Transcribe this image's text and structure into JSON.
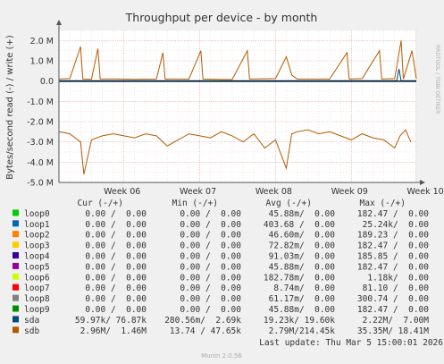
{
  "title": "Throughput per device - by month",
  "watermark": "RRDTOOL / TOBI OETIKER",
  "footer": "Munin 2.0.56",
  "last_update": "Last update: Thu Mar  5 15:00:01 2026",
  "legend": {
    "headers": [
      "Cur (-/+)",
      "Min (-/+)",
      "Avg (-/+)",
      "Max (-/+)"
    ],
    "rows": [
      {
        "name": "loop0",
        "color": "#00cc00",
        "cur": "0.00 /  0.00",
        "min": "0.00 /  0.00",
        "avg": "45.88m/  0.00",
        "max": "182.47 /  0.00"
      },
      {
        "name": "loop1",
        "color": "#0066b3",
        "cur": "0.00 /  0.00",
        "min": "0.00 /  0.00",
        "avg": "403.68 /  0.00",
        "max": "25.24k/  0.00"
      },
      {
        "name": "loop2",
        "color": "#ff8000",
        "cur": "0.00 /  0.00",
        "min": "0.00 /  0.00",
        "avg": "46.60m/  0.00",
        "max": "189.23 /  0.00"
      },
      {
        "name": "loop3",
        "color": "#ffcc00",
        "cur": "0.00 /  0.00",
        "min": "0.00 /  0.00",
        "avg": "72.82m/  0.00",
        "max": "182.47 /  0.00"
      },
      {
        "name": "loop4",
        "color": "#330099",
        "cur": "0.00 /  0.00",
        "min": "0.00 /  0.00",
        "avg": "91.03m/  0.00",
        "max": "185.85 /  0.00"
      },
      {
        "name": "loop5",
        "color": "#990099",
        "cur": "0.00 /  0.00",
        "min": "0.00 /  0.00",
        "avg": "45.88m/  0.00",
        "max": "182.47 /  0.00"
      },
      {
        "name": "loop6",
        "color": "#ccff00",
        "cur": "0.00 /  0.00",
        "min": "0.00 /  0.00",
        "avg": "182.78m/  0.00",
        "max": "1.18k/  0.00"
      },
      {
        "name": "loop7",
        "color": "#ff0000",
        "cur": "0.00 /  0.00",
        "min": "0.00 /  0.00",
        "avg": "8.74m/  0.00",
        "max": "81.10 /  0.00"
      },
      {
        "name": "loop8",
        "color": "#808080",
        "cur": "0.00 /  0.00",
        "min": "0.00 /  0.00",
        "avg": "61.17m/  0.00",
        "max": "300.74 /  0.00"
      },
      {
        "name": "loop9",
        "color": "#008f00",
        "cur": "0.00 /  0.00",
        "min": "0.00 /  0.00",
        "avg": "45.88m/  0.00",
        "max": "182.47 /  0.00"
      },
      {
        "name": "sda",
        "color": "#00487d",
        "cur": "59.97k/ 76.87k",
        "min": "280.56m/  2.69k",
        "avg": "19.23k/ 19.60k",
        "max": "2.22M/  7.00M"
      },
      {
        "name": "sdb",
        "color": "#b35a00",
        "cur": "2.96M/  1.46M",
        "min": "13.74 / 47.65k",
        "avg": "2.79M/214.45k",
        "max": "35.35M/ 18.41M"
      }
    ]
  },
  "chart_data": {
    "type": "line",
    "title": "Throughput per device - by month",
    "ylabel": "Bytes/second read (-) / write (+)",
    "ylim": [
      -5000000,
      2500000
    ],
    "yticks": [
      2000000,
      1000000,
      0,
      -1000000,
      -2000000,
      -3000000,
      -4000000,
      -5000000
    ],
    "ytick_labels": [
      "2.0 M",
      "1.0 M",
      "0.0",
      "-1.0 M",
      "-2.0 M",
      "-3.0 M",
      "-4.0 M",
      "-5.0 M"
    ],
    "x_range_days": [
      0,
      33
    ],
    "xticks": [
      {
        "label": "Week 06",
        "day": 6.0
      },
      {
        "label": "Week 07",
        "day": 13.0
      },
      {
        "label": "Week 08",
        "day": 20.0
      },
      {
        "label": "Week 09",
        "day": 27.0
      },
      {
        "label": "Week 10",
        "day": 34.0
      }
    ],
    "grid": true,
    "series": [
      {
        "name": "sdb",
        "color": "#b35a00",
        "read": [
          [
            0,
            -2500000
          ],
          [
            1,
            -2600000
          ],
          [
            2,
            -3000000
          ],
          [
            2.3,
            -4600000
          ],
          [
            3,
            -2900000
          ],
          [
            4,
            -2700000
          ],
          [
            5,
            -2600000
          ],
          [
            6,
            -2700000
          ],
          [
            7,
            -2800000
          ],
          [
            8,
            -2600000
          ],
          [
            9,
            -2700000
          ],
          [
            10,
            -3200000
          ],
          [
            11,
            -2900000
          ],
          [
            12,
            -2600000
          ],
          [
            13,
            -2700000
          ],
          [
            14,
            -2800000
          ],
          [
            15,
            -2500000
          ],
          [
            16,
            -2700000
          ],
          [
            17,
            -3000000
          ],
          [
            18,
            -2600000
          ],
          [
            19,
            -3300000
          ],
          [
            20,
            -2900000
          ],
          [
            21,
            -4300000
          ],
          [
            21.5,
            -2600000
          ],
          [
            22,
            -2500000
          ],
          [
            23,
            -2400000
          ],
          [
            24,
            -2600000
          ],
          [
            25,
            -2500000
          ],
          [
            26,
            -2700000
          ],
          [
            27,
            -2900000
          ],
          [
            28,
            -2600000
          ],
          [
            29,
            -2800000
          ],
          [
            30,
            -2900000
          ],
          [
            31,
            -3300000
          ],
          [
            31.5,
            -2700000
          ],
          [
            32,
            -2400000
          ],
          [
            32.5,
            -3000000
          ]
        ],
        "write": [
          [
            0,
            100000
          ],
          [
            1,
            120000
          ],
          [
            2,
            1700000
          ],
          [
            2.2,
            100000
          ],
          [
            3,
            90000
          ],
          [
            3.6,
            1600000
          ],
          [
            3.8,
            100000
          ],
          [
            5,
            110000
          ],
          [
            7,
            90000
          ],
          [
            9,
            100000
          ],
          [
            9.6,
            1400000
          ],
          [
            9.8,
            100000
          ],
          [
            12,
            100000
          ],
          [
            13.1,
            1500000
          ],
          [
            13.3,
            100000
          ],
          [
            16,
            80000
          ],
          [
            17.4,
            1500000
          ],
          [
            17.6,
            100000
          ],
          [
            20,
            120000
          ],
          [
            21,
            1200000
          ],
          [
            21.5,
            300000
          ],
          [
            22,
            100000
          ],
          [
            25,
            100000
          ],
          [
            26.6,
            1400000
          ],
          [
            26.8,
            100000
          ],
          [
            28,
            120000
          ],
          [
            29.6,
            1500000
          ],
          [
            29.8,
            100000
          ],
          [
            31,
            120000
          ],
          [
            31.6,
            2000000
          ],
          [
            31.8,
            100000
          ],
          [
            32.6,
            1500000
          ],
          [
            33,
            120000
          ]
        ]
      },
      {
        "name": "sda",
        "color": "#00487d",
        "read": [
          [
            0,
            -20000
          ],
          [
            33,
            -20000
          ]
        ],
        "write": [
          [
            0,
            20000
          ],
          [
            31.2,
            20000
          ],
          [
            31.4,
            600000
          ],
          [
            31.6,
            20000
          ],
          [
            33,
            20000
          ]
        ]
      }
    ]
  }
}
